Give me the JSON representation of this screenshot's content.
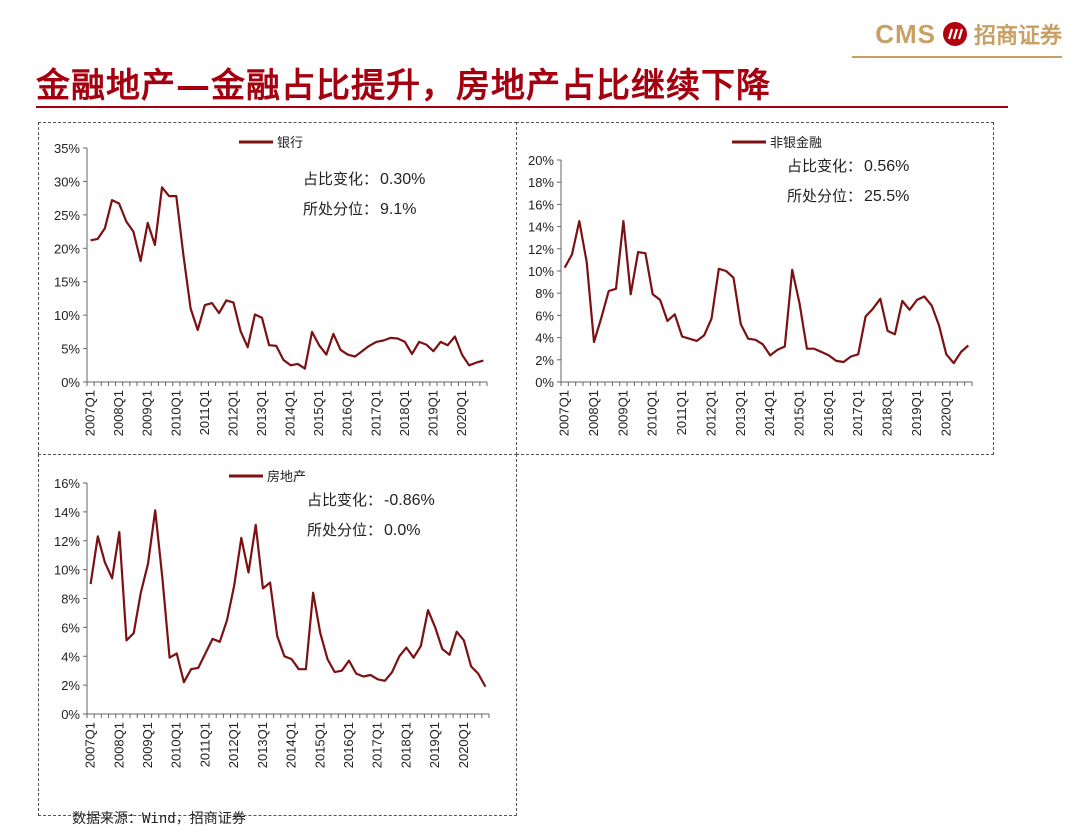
{
  "header": {
    "logo_text": "CMS",
    "logo_cn": "招商证券",
    "logo_mark_icon": "cms-logo-mark-icon",
    "title": "金融地产—金融占比提升，房地产占比继续下降"
  },
  "colors": {
    "series": "#7b1113",
    "title": "#a5000f",
    "logo": "#c9a063"
  },
  "footer": {
    "source": "数据来源：Wind，招商证券"
  },
  "chart_data": [
    {
      "type": "line",
      "series": [
        {
          "name": "银行",
          "values": [
            21.2,
            21.4,
            23.0,
            27.2,
            26.7,
            24.0,
            22.5,
            18.1,
            23.8,
            20.5,
            29.1,
            27.8,
            27.8,
            19.0,
            11.0,
            7.8,
            11.5,
            11.8,
            10.3,
            12.2,
            11.9,
            7.6,
            5.2,
            10.1,
            9.6,
            5.5,
            5.4,
            3.3,
            2.5,
            2.7,
            2.0,
            7.5,
            5.5,
            4.1,
            7.2,
            4.8,
            4.1,
            3.8,
            4.6,
            5.4,
            6.0,
            6.2,
            6.6,
            6.5,
            6.0,
            4.2,
            6.0,
            5.6,
            4.6,
            6.0,
            5.5,
            6.8,
            4.1,
            2.5,
            2.9,
            3.2
          ]
        }
      ],
      "x_tick_labels": [
        "2007Q1",
        "2008Q1",
        "2009Q1",
        "2010Q1",
        "2011Q1",
        "2012Q1",
        "2013Q1",
        "2014Q1",
        "2015Q1",
        "2016Q1",
        "2017Q1",
        "2018Q1",
        "2019Q1",
        "2020Q1"
      ],
      "y_ticks": [
        "0%",
        "5%",
        "10%",
        "15%",
        "20%",
        "25%",
        "30%",
        "35%"
      ],
      "ylim": [
        0,
        35
      ],
      "ticks": [
        0,
        5,
        10,
        15,
        20,
        25,
        30,
        35
      ],
      "legend_position": "top",
      "annotations": [
        {
          "label": "占比变化：",
          "value": "0.30%"
        },
        {
          "label": "所处分位：",
          "value": "9.1%"
        }
      ]
    },
    {
      "type": "line",
      "series": [
        {
          "name": "非银金融",
          "values": [
            10.3,
            11.5,
            14.5,
            10.8,
            3.6,
            5.8,
            8.2,
            8.4,
            14.5,
            7.9,
            11.7,
            11.6,
            7.9,
            7.4,
            5.5,
            6.1,
            4.1,
            3.9,
            3.7,
            4.2,
            5.7,
            10.2,
            10.0,
            9.4,
            5.2,
            3.9,
            3.8,
            3.4,
            2.4,
            2.9,
            3.2,
            10.1,
            7.1,
            3.0,
            3.0,
            2.7,
            2.4,
            1.9,
            1.8,
            2.3,
            2.5,
            5.9,
            6.6,
            7.5,
            4.6,
            4.3,
            7.3,
            6.5,
            7.4,
            7.7,
            6.9,
            5.1,
            2.5,
            1.7,
            2.7,
            3.3
          ]
        }
      ],
      "x_tick_labels": [
        "2007Q1",
        "2008Q1",
        "2009Q1",
        "2010Q1",
        "2011Q1",
        "2012Q1",
        "2013Q1",
        "2014Q1",
        "2015Q1",
        "2016Q1",
        "2017Q1",
        "2018Q1",
        "2019Q1",
        "2020Q1"
      ],
      "y_ticks": [
        "0%",
        "2%",
        "4%",
        "6%",
        "8%",
        "10%",
        "12%",
        "14%",
        "16%",
        "18%",
        "20%"
      ],
      "ylim": [
        0,
        20
      ],
      "ticks": [
        0,
        2,
        4,
        6,
        8,
        10,
        12,
        14,
        16,
        18,
        20
      ],
      "legend_position": "top",
      "annotations": [
        {
          "label": "占比变化：",
          "value": "0.56%"
        },
        {
          "label": "所处分位：",
          "value": "25.5%"
        }
      ]
    },
    {
      "type": "line",
      "series": [
        {
          "name": "房地产",
          "values": [
            9.0,
            12.3,
            10.5,
            9.4,
            12.6,
            5.1,
            5.6,
            8.4,
            10.4,
            14.1,
            9.4,
            3.9,
            4.2,
            2.2,
            3.1,
            3.2,
            4.2,
            5.2,
            5.0,
            6.5,
            8.9,
            12.2,
            9.8,
            13.1,
            8.7,
            9.1,
            5.4,
            4.0,
            3.8,
            3.1,
            3.1,
            8.4,
            5.6,
            3.8,
            2.9,
            3.0,
            3.7,
            2.8,
            2.6,
            2.7,
            2.4,
            2.3,
            2.9,
            4.0,
            4.6,
            3.9,
            4.7,
            7.2,
            6.0,
            4.5,
            4.1,
            5.7,
            5.1,
            3.3,
            2.8,
            1.9
          ]
        }
      ],
      "x_tick_labels": [
        "2007Q1",
        "2008Q1",
        "2009Q1",
        "2010Q1",
        "2011Q1",
        "2012Q1",
        "2013Q1",
        "2014Q1",
        "2015Q1",
        "2016Q1",
        "2017Q1",
        "2018Q1",
        "2019Q1",
        "2020Q1"
      ],
      "y_ticks": [
        "0%",
        "2%",
        "4%",
        "6%",
        "8%",
        "10%",
        "12%",
        "14%",
        "16%"
      ],
      "ylim": [
        0,
        16
      ],
      "ticks": [
        0,
        2,
        4,
        6,
        8,
        10,
        12,
        14,
        16
      ],
      "legend_position": "top",
      "annotations": [
        {
          "label": "占比变化：",
          "value": "-0.86%"
        },
        {
          "label": "所处分位：",
          "value": "0.0%"
        }
      ]
    }
  ]
}
